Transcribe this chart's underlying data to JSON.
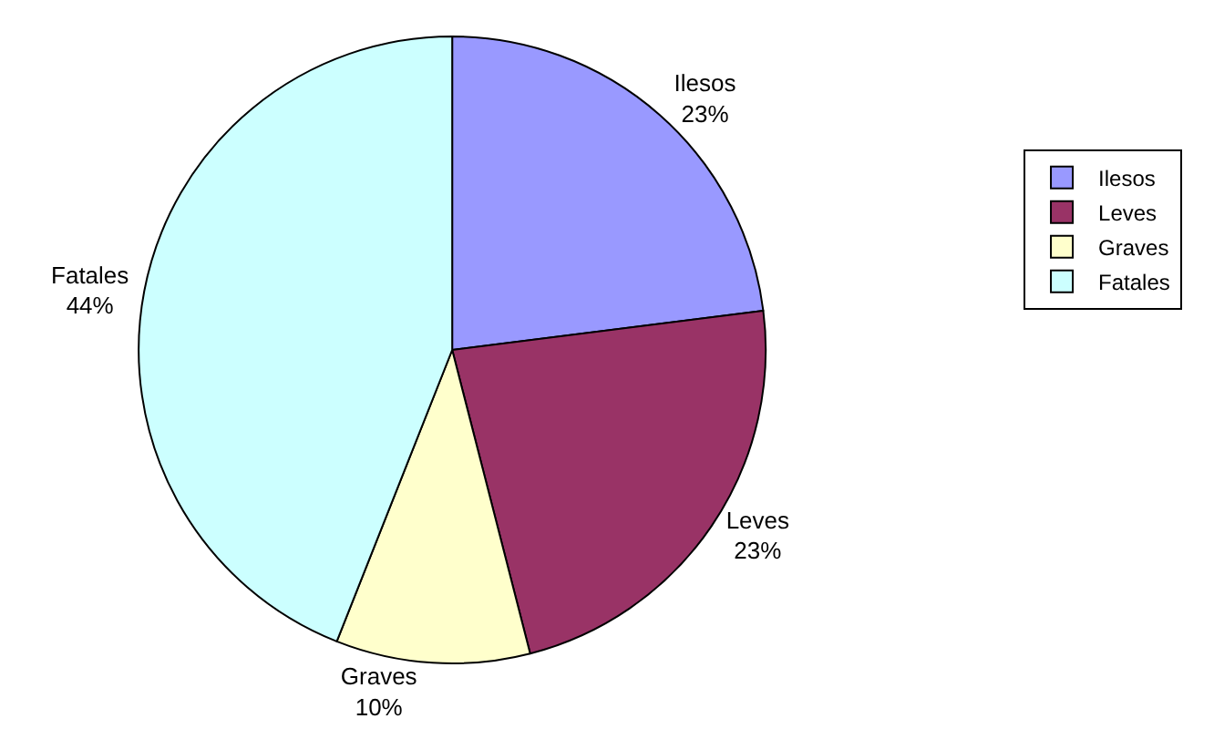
{
  "chart_data": {
    "type": "pie",
    "categories": [
      "Ilesos",
      "Leves",
      "Graves",
      "Fatales"
    ],
    "values": [
      23,
      23,
      10,
      44
    ],
    "colors": [
      "#9999ff",
      "#993366",
      "#ffffcc",
      "#ccffff"
    ],
    "value_labels": [
      "23%",
      "23%",
      "10%",
      "44%"
    ],
    "legend": "right"
  }
}
